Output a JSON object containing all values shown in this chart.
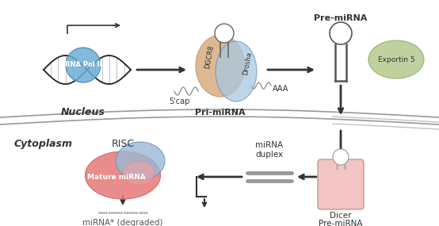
{
  "background_color": "#ffffff",
  "cytoplasm_label": "Cytoplasm",
  "nucleus_label": "Nucleus",
  "rna_pol_label": "RNA Pol II",
  "pri_mirna_label": "Pri-miRNA",
  "pre_mirna_label_top": "Pre-miRNA",
  "pre_mirna_label_bottom": "Pre-miRNA",
  "exportin_label": "Exportin 5",
  "dicer_label": "Dicer",
  "mirna_duplex_label": "miRNA\nduplex",
  "risc_label": "RISC",
  "mature_mirna_label": "Mature miRNA",
  "degraded_label": "miRNA* (degraded)",
  "five_cap_label": "5'cap",
  "aaa_label": "AAA",
  "dgcr8_label": "DGCR8",
  "drosha_label": "Drosha",
  "rna_pol_color": "#6baed6",
  "exportin_color": "#b5c98e",
  "dicer_fill_color": "#f2c4c4",
  "pri_mirna_tan": "#d4a878",
  "pri_mirna_blue": "#a8c8e0",
  "risc_blue": "#9ab8d8",
  "risc_red": "#e87878",
  "risc_pink": "#f0a0a0",
  "curve_color": "#999999",
  "arrow_color": "#333333",
  "text_color": "#333333",
  "fig_width": 5.54,
  "fig_height": 2.85,
  "dpi": 100
}
